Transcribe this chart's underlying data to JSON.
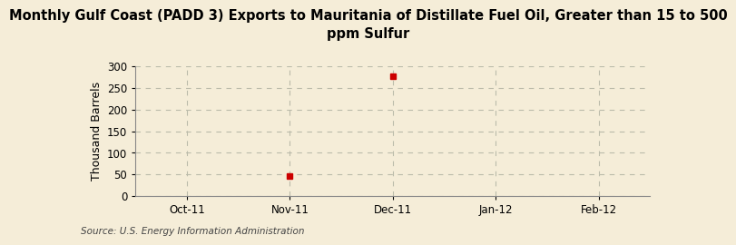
{
  "title": "Monthly Gulf Coast (PADD 3) Exports to Mauritania of Distillate Fuel Oil, Greater than 15 to 500\nppm Sulfur",
  "ylabel": "Thousand Barrels",
  "source": "Source: U.S. Energy Information Administration",
  "background_color": "#f5edd8",
  "plot_bg_color": "#f5edd8",
  "data_points": [
    {
      "date_num": 1,
      "value": 47
    },
    {
      "date_num": 2,
      "value": 276
    }
  ],
  "x_tick_positions": [
    0,
    1,
    2,
    3,
    4
  ],
  "x_tick_labels": [
    "Oct-11",
    "Nov-11",
    "Dec-11",
    "Jan-12",
    "Feb-12"
  ],
  "ylim": [
    0,
    300
  ],
  "yticks": [
    0,
    50,
    100,
    150,
    200,
    250,
    300
  ],
  "marker_color": "#cc0000",
  "marker_size": 5,
  "grid_color": "#bbbbaa",
  "title_fontsize": 10.5,
  "axis_label_fontsize": 9,
  "tick_fontsize": 8.5,
  "source_fontsize": 7.5
}
